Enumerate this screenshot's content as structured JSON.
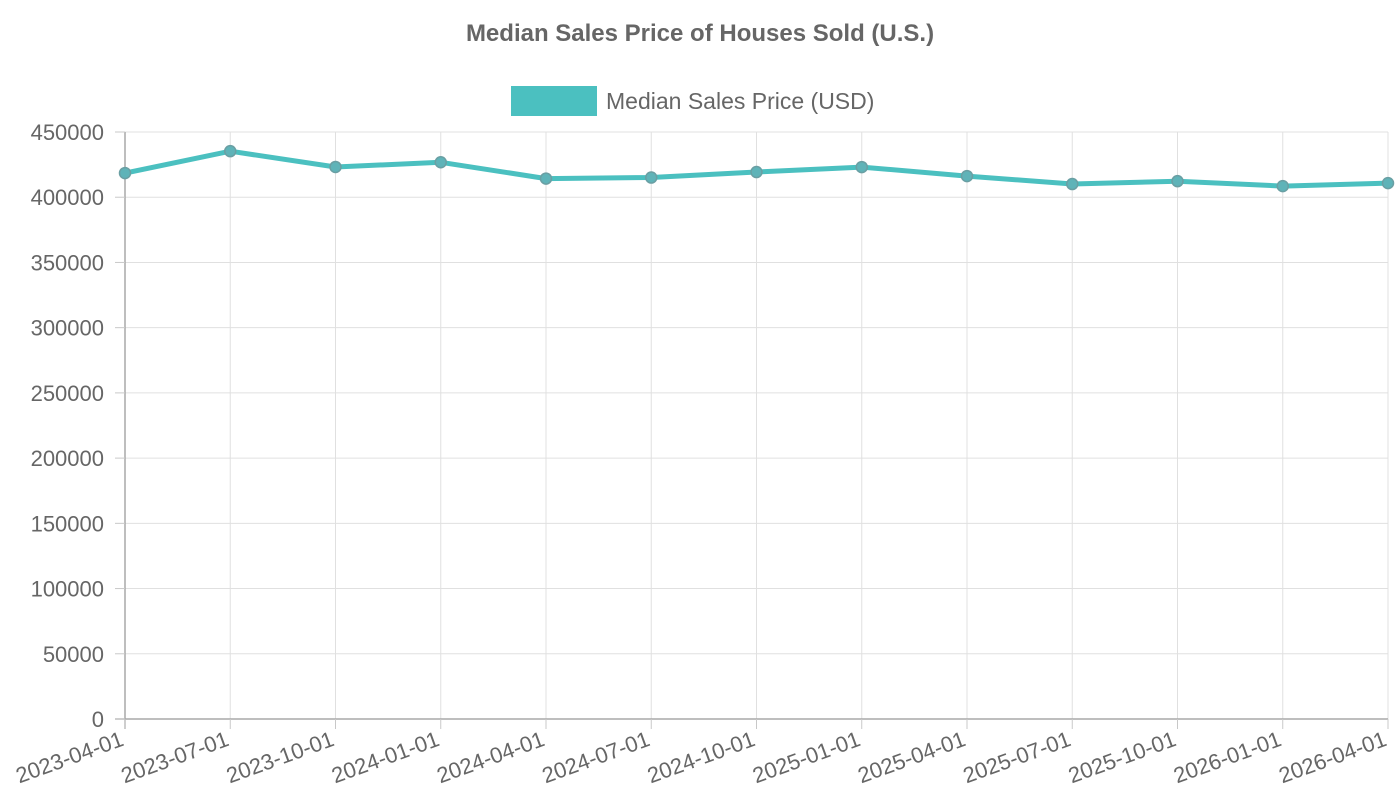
{
  "chart_data": {
    "type": "line",
    "title": "Median Sales Price of Houses Sold (U.S.)",
    "xlabel": "",
    "ylabel": "",
    "categories": [
      "2023-04-01",
      "2023-07-01",
      "2023-10-01",
      "2024-01-01",
      "2024-04-01",
      "2024-07-01",
      "2024-10-01",
      "2025-01-01",
      "2025-04-01",
      "2025-07-01",
      "2025-10-01",
      "2026-01-01",
      "2026-04-01"
    ],
    "series": [
      {
        "name": "Median Sales Price (USD)",
        "color": "#4bc0c0",
        "values": [
          418500,
          435300,
          423200,
          426800,
          414300,
          415100,
          419300,
          423100,
          416200,
          410100,
          412300,
          408500,
          410800
        ]
      }
    ],
    "ylim": [
      0,
      450000
    ],
    "yticks": [
      0,
      50000,
      100000,
      150000,
      200000,
      250000,
      300000,
      350000,
      400000,
      450000
    ],
    "grid": true,
    "legend_position": "top"
  }
}
